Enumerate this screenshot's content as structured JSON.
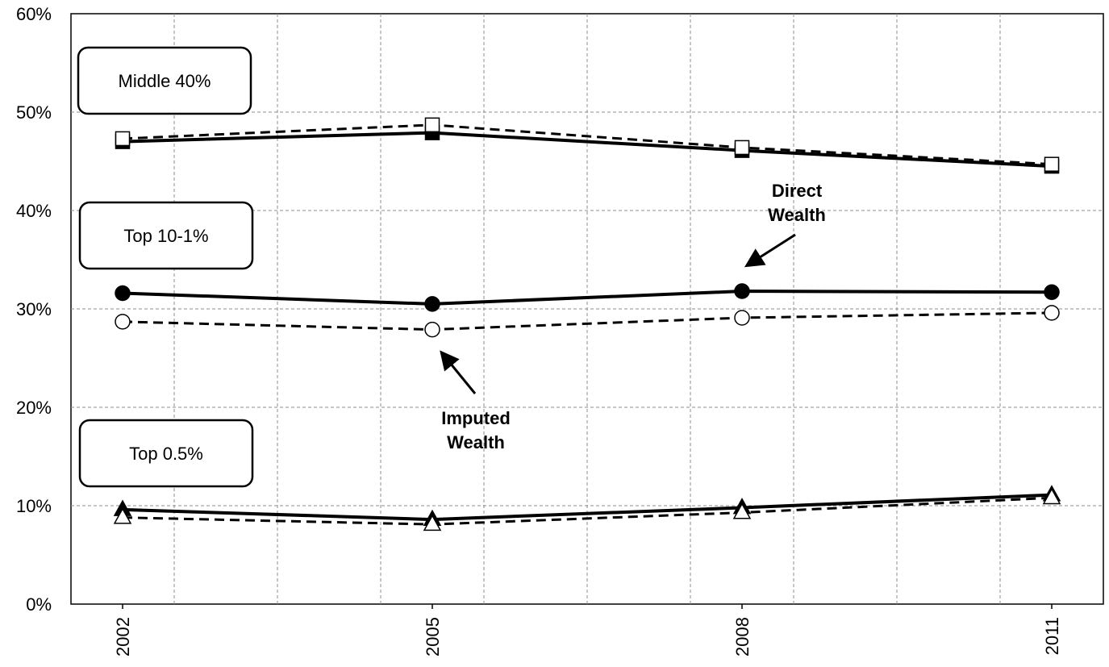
{
  "chart_data": {
    "type": "line",
    "title": "",
    "xlabel": "",
    "ylabel": "",
    "x": [
      "2002",
      "2005",
      "2008",
      "2011"
    ],
    "ylim": [
      0,
      60
    ],
    "y_ticks": [
      "0%",
      "10%",
      "20%",
      "30%",
      "40%",
      "50%",
      "60%"
    ],
    "grid": true,
    "colors": {
      "line": "#000000",
      "grid": "#8c8c8c",
      "box_border": "#000000"
    },
    "groups": [
      {
        "label": "Middle 40%",
        "marker": "square",
        "series": [
          {
            "style": "solid",
            "fill": "filled",
            "values": [
              47.0,
              47.9,
              46.1,
              44.5
            ]
          },
          {
            "style": "dashed",
            "fill": "open",
            "values": [
              47.3,
              48.7,
              46.4,
              44.7
            ]
          }
        ]
      },
      {
        "label": "Top 10-1%",
        "marker": "circle",
        "series": [
          {
            "style": "solid",
            "fill": "filled",
            "values": [
              31.6,
              30.5,
              31.8,
              31.7
            ]
          },
          {
            "style": "dashed",
            "fill": "open",
            "values": [
              28.7,
              27.9,
              29.1,
              29.6
            ]
          }
        ]
      },
      {
        "label": "Top 0.5%",
        "marker": "triangle",
        "series": [
          {
            "style": "solid",
            "fill": "filled",
            "values": [
              9.6,
              8.6,
              9.8,
              11.1
            ]
          },
          {
            "style": "dashed",
            "fill": "open",
            "values": [
              8.8,
              8.1,
              9.3,
              10.8
            ]
          }
        ]
      }
    ],
    "annotations": [
      {
        "label_lines": [
          "Direct",
          "Wealth"
        ],
        "points_to": "solid"
      },
      {
        "label_lines": [
          "Imputed",
          "Wealth"
        ],
        "points_to": "dashed"
      }
    ]
  }
}
